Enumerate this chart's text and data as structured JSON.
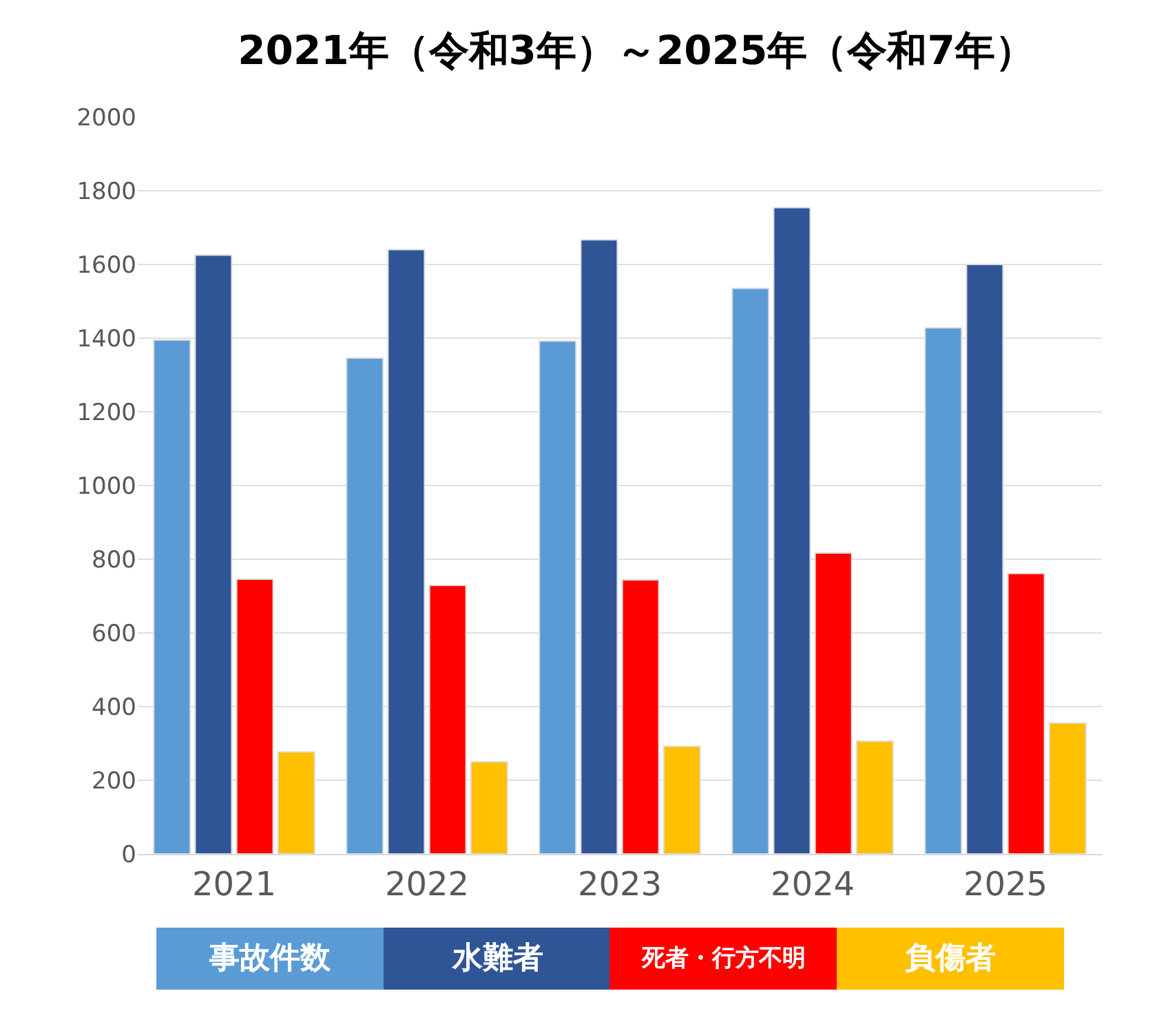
{
  "chart_data": {
    "type": "bar",
    "title": "2021年（令和3年）～2025年（令和7年）",
    "categories": [
      "2021",
      "2022",
      "2023",
      "2024",
      "2025"
    ],
    "series": [
      {
        "name": "事故件数",
        "color": "#5b9bd5",
        "values": [
          1395,
          1346,
          1392,
          1535,
          1428
        ]
      },
      {
        "name": "水難者",
        "color": "#2f5597",
        "values": [
          1625,
          1640,
          1667,
          1754,
          1600
        ]
      },
      {
        "name": "死者・行方不明",
        "color": "#ff0000",
        "values": [
          746,
          729,
          744,
          817,
          761
        ]
      },
      {
        "name": "負傷者",
        "color": "#ffc000",
        "values": [
          277,
          250,
          292,
          306,
          355
        ]
      }
    ],
    "ylim": [
      0,
      2000
    ],
    "yticks": [
      0,
      200,
      400,
      600,
      800,
      1000,
      1200,
      1400,
      1600,
      1800,
      2000
    ],
    "grid": "y",
    "legend": "bottom"
  }
}
